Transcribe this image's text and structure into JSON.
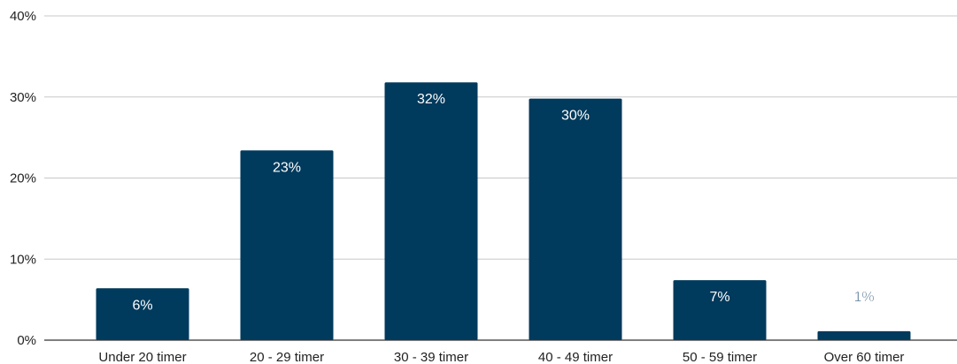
{
  "chart_data": {
    "type": "bar",
    "categories": [
      "Under 20 timer",
      "20 - 29 timer",
      "30 - 39 timer",
      "40 - 49 timer",
      "50 - 59 timer",
      "Over 60 timer"
    ],
    "values": [
      6.4,
      23.4,
      31.8,
      29.8,
      7.4,
      1.1
    ],
    "data_labels": [
      "6%",
      "23%",
      "32%",
      "30%",
      "7%",
      "1%"
    ],
    "y_ticks": [
      0,
      10,
      20,
      30,
      40
    ],
    "y_tick_labels": [
      "0%",
      "10%",
      "20%",
      "30%",
      "40%"
    ],
    "ylim": [
      0,
      40
    ],
    "grid": true,
    "legend": "none",
    "bar_color": "#003a5c",
    "label_color_inside": "#ffffff",
    "label_color_outside": "#1c4a6e"
  }
}
